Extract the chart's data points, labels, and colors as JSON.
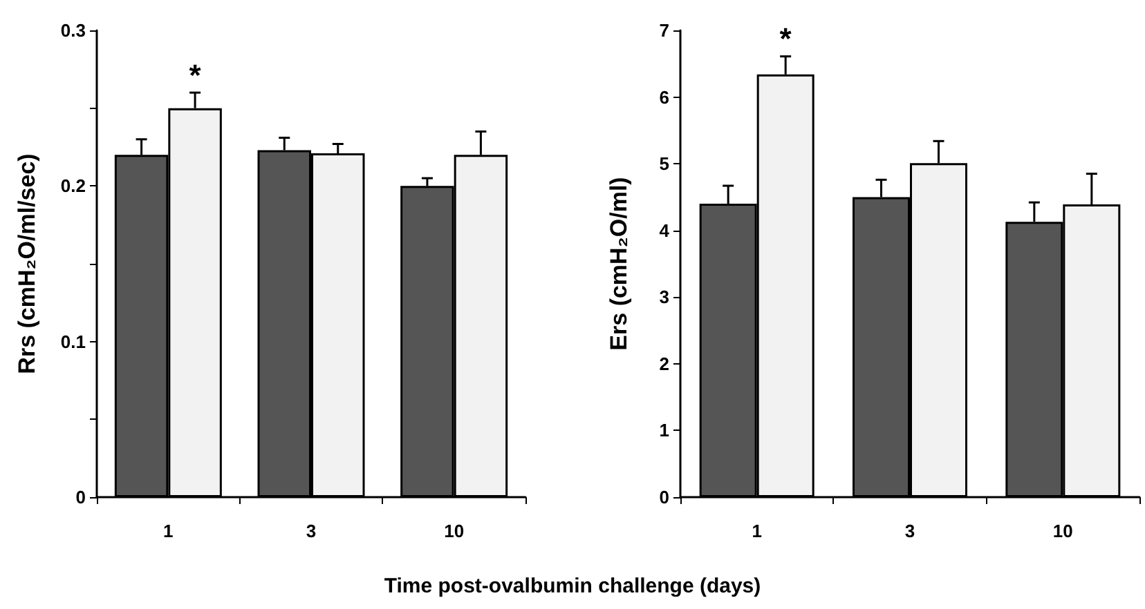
{
  "chart_data": [
    {
      "type": "bar",
      "xlabel": "Time post-ovalbumin challenge (days)",
      "ylabel": "Rrs (cmH₂O/ml/sec)",
      "categories": [
        "1",
        "3",
        "10"
      ],
      "series": [
        {
          "color": "#555555",
          "values": [
            0.22,
            0.223,
            0.2
          ],
          "errors": [
            [
              0.22,
              0.23
            ],
            [
              0.223,
              0.231
            ],
            [
              0.2,
              0.205
            ]
          ]
        },
        {
          "color": "#f2f2f2",
          "values": [
            0.25,
            0.221,
            0.22
          ],
          "errors": [
            [
              0.25,
              0.26
            ],
            [
              0.221,
              0.227
            ],
            [
              0.22,
              0.235
            ]
          ]
        }
      ],
      "ylim": [
        0,
        0.3
      ],
      "yticks": [
        0,
        {
          "value": 0.05,
          "label": null
        },
        0.1,
        {
          "value": 0.15,
          "label": null
        },
        0.2,
        {
          "value": 0.25,
          "label": null
        },
        0.3
      ],
      "annotations": [
        {
          "text": "*",
          "x": "1",
          "y": 0.25
        }
      ],
      "grid": false
    },
    {
      "type": "bar",
      "ylabel": "Ers (cmH₂O/ml)",
      "categories": [
        "1",
        "3",
        "10"
      ],
      "series": [
        {
          "color": "#555555",
          "values": [
            4.4,
            4.5,
            4.13
          ],
          "errors": [
            [
              4.4,
              4.67
            ],
            [
              4.5,
              4.76
            ],
            [
              4.13,
              4.42
            ]
          ]
        },
        {
          "color": "#f2f2f2",
          "values": [
            6.34,
            5.01,
            4.39
          ],
          "errors": [
            [
              6.34,
              6.61
            ],
            [
              5.01,
              5.34
            ],
            [
              4.39,
              4.85
            ]
          ]
        }
      ],
      "ylim": [
        0,
        7
      ],
      "yticks": [
        0,
        1,
        2,
        3,
        4,
        5,
        6,
        7
      ],
      "annotations": [
        {
          "text": "*",
          "x": "1",
          "y": 6.34
        }
      ],
      "grid": false
    }
  ]
}
